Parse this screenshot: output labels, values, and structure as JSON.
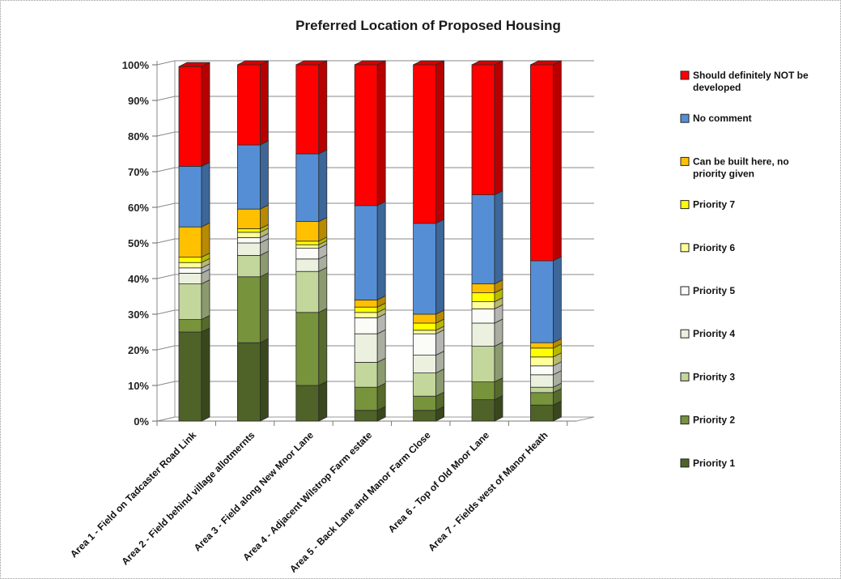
{
  "chart_data": {
    "type": "bar",
    "stacked": true,
    "three_d": true,
    "title": "Preferred Location of Proposed Housing",
    "xlabel": "",
    "ylabel": "",
    "ylim": [
      0,
      100
    ],
    "y_ticks": [
      "0%",
      "10%",
      "20%",
      "30%",
      "40%",
      "50%",
      "60%",
      "70%",
      "80%",
      "90%",
      "100%"
    ],
    "grid": true,
    "legend_position": "right",
    "categories": [
      "Area 1 - Field on Tadcaster Road Link",
      "Area 2 - Field behind village allotmernts",
      "Area 3 - Field along New Moor Lane",
      "Area 4 - Adjacent Wilstrop Farm estate",
      "Area 5 - Back Lane and Manor Farm Close",
      "Area 6 - Top of Old Moor Lane",
      "Area 7 - Fields west of Manor Heath"
    ],
    "series": [
      {
        "name": "Priority 1",
        "color": "#4f6228",
        "values": [
          25,
          22,
          10,
          3,
          3,
          6,
          4.5
        ]
      },
      {
        "name": "Priority 2",
        "color": "#77933c",
        "values": [
          3.5,
          18.5,
          20.5,
          6.5,
          4,
          5,
          3.5
        ]
      },
      {
        "name": "Priority 3",
        "color": "#c3d69b",
        "values": [
          10,
          6,
          11.5,
          7,
          6.5,
          10,
          1.5
        ]
      },
      {
        "name": "Priority 4",
        "color": "#ebf1de",
        "values": [
          3,
          3.5,
          3.5,
          8,
          5,
          6.5,
          3.5
        ]
      },
      {
        "name": "Priority 5",
        "color": "#fbfbf7",
        "values": [
          1.5,
          1.5,
          3,
          4.5,
          6,
          4,
          2.5
        ]
      },
      {
        "name": "Priority 6",
        "color": "#ffff99",
        "values": [
          1.5,
          1.5,
          1,
          1.5,
          1,
          2,
          2.5
        ]
      },
      {
        "name": "Priority 7",
        "color": "#ffff00",
        "values": [
          1.5,
          1,
          1,
          1.5,
          2,
          2.5,
          2.5
        ]
      },
      {
        "name": "Can be built here, no priority given",
        "color": "#ffc000",
        "values": [
          8.5,
          5.5,
          5.5,
          2,
          2.5,
          2.5,
          1.5
        ]
      },
      {
        "name": "No comment",
        "color": "#558ed5",
        "values": [
          17,
          18,
          19,
          26.5,
          25.5,
          25,
          23
        ]
      },
      {
        "name": "Should definitely NOT be developed",
        "color": "#ff0000",
        "values": [
          28,
          22.5,
          25,
          39.5,
          44.5,
          36.5,
          55
        ]
      }
    ],
    "legend": [
      {
        "name": "Should definitely NOT be developed",
        "color": "#ff0000",
        "lines": [
          "Should definitely NOT be",
          "developed"
        ]
      },
      {
        "name": "No comment",
        "color": "#558ed5",
        "lines": [
          "No comment"
        ]
      },
      {
        "name": "Can be built here, no priority given",
        "color": "#ffc000",
        "lines": [
          "Can be built here, no",
          "priority given"
        ]
      },
      {
        "name": "Priority 7",
        "color": "#ffff00",
        "lines": [
          "Priority 7"
        ]
      },
      {
        "name": "Priority 6",
        "color": "#ffff99",
        "lines": [
          "Priority 6"
        ]
      },
      {
        "name": "Priority 5",
        "color": "#fbfbf7",
        "lines": [
          "Priority 5"
        ]
      },
      {
        "name": "Priority 4",
        "color": "#ebf1de",
        "lines": [
          "Priority 4"
        ]
      },
      {
        "name": "Priority 3",
        "color": "#c3d69b",
        "lines": [
          "Priority 3"
        ]
      },
      {
        "name": "Priority 2",
        "color": "#77933c",
        "lines": [
          "Priority 2"
        ]
      },
      {
        "name": "Priority 1",
        "color": "#4f6228",
        "lines": [
          "Priority 1"
        ]
      }
    ]
  }
}
